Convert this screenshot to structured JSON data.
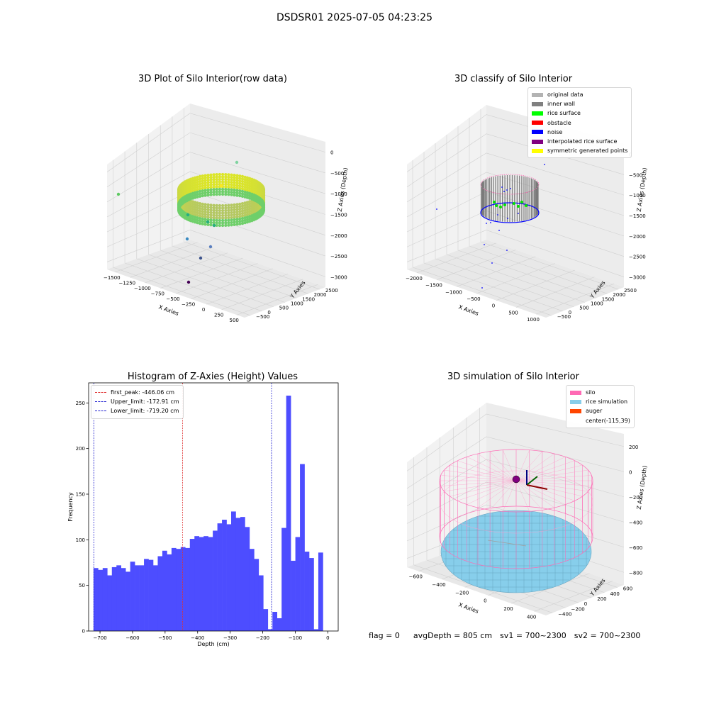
{
  "figure": {
    "suptitle": "DSDSR01 2025-07-05 04:23:25",
    "status": {
      "flag": "flag = 0",
      "avg_depth": "avgDepth = 805 cm",
      "sv1": "sv1 = 700~2300",
      "sv2": "sv2 = 700~2300"
    }
  },
  "chart_data": [
    {
      "type": "scatter3d",
      "title": "3D Plot of Silo Interior(row data)",
      "xlabel": "X Axies",
      "ylabel": "Y Axies",
      "zlabel": "Z Axies (Depth)",
      "x_ticks": [
        "−1500",
        "−1250",
        "−1000",
        "−750",
        "−500",
        "−250",
        "0",
        "250",
        "500"
      ],
      "y_ticks": [
        "−500",
        "0",
        "500",
        "1000",
        "1500",
        "2000",
        "2500"
      ],
      "z_ticks": [
        "0",
        "−500",
        "−1000",
        "−1500",
        "−2000",
        "−2500",
        "−3000"
      ],
      "colormap": "viridis",
      "grid": true
    },
    {
      "type": "scatter3d",
      "title": "3D classify of Silo Interior",
      "xlabel": "X Axies",
      "ylabel": "Y Axies",
      "zlabel": "Z Axies (Depth)",
      "x_ticks": [
        "−2000",
        "−1500",
        "−1000",
        "−500",
        "0",
        "500",
        "1000"
      ],
      "y_ticks": [
        "−500",
        "0",
        "500",
        "1000",
        "1500",
        "2000",
        "2500"
      ],
      "z_ticks": [
        "0",
        "−500",
        "−1000",
        "−1500",
        "−2000",
        "−2500",
        "−3000"
      ],
      "legend": [
        {
          "label": "original data",
          "color": "#b3b3b3"
        },
        {
          "label": "inner wall",
          "color": "#808080"
        },
        {
          "label": "rice surface",
          "color": "#00ff00"
        },
        {
          "label": "obstacle",
          "color": "#ff0000"
        },
        {
          "label": "noise",
          "color": "#0000ff"
        },
        {
          "label": "interpolated rice surface",
          "color": "#800080"
        },
        {
          "label": "symmetric generated points",
          "color": "#ffff00"
        }
      ],
      "legend_position": "top-right",
      "grid": true
    },
    {
      "type": "bar",
      "title": "Histogram of Z-Axies (Height) Values",
      "xlabel": "Depth (cm)",
      "ylabel": "Frequency",
      "xlim": [
        -735,
        32
      ],
      "ylim": [
        0,
        272
      ],
      "x_ticks": [
        -700,
        -600,
        -500,
        -400,
        -300,
        -200,
        -100,
        0
      ],
      "x_tick_labels": [
        "−700",
        "−600",
        "−500",
        "−400",
        "−300",
        "−200",
        "−100",
        "0"
      ],
      "y_ticks": [
        0,
        50,
        100,
        150,
        200,
        250
      ],
      "bin_start": -720,
      "bin_width": 14.1,
      "values": [
        69,
        67,
        69,
        61,
        70,
        72,
        69,
        65,
        76,
        72,
        72,
        79,
        78,
        72,
        82,
        88,
        84,
        91,
        90,
        92,
        91,
        101,
        104,
        103,
        104,
        103,
        110,
        118,
        122,
        117,
        131,
        124,
        125,
        114,
        90,
        79,
        61,
        24,
        2,
        21,
        14,
        113,
        258,
        77,
        103,
        183,
        87,
        80,
        2,
        86
      ],
      "bar_color": "#4d4dff",
      "vlines": [
        {
          "label": "first_peak: -446.06 cm",
          "x": -446.06,
          "color": "#e03030"
        },
        {
          "label": "Upper_limit: -172.91 cm",
          "x": -172.91,
          "color": "#2020d0"
        },
        {
          "label": "Lower_limit: -719.20 cm",
          "x": -719.2,
          "color": "#2020d0"
        }
      ],
      "legend_position": "top-left",
      "grid": false
    },
    {
      "type": "surface3d",
      "title": "3D simulation of Silo Interior",
      "xlabel": "X Axies",
      "ylabel": "Y Axies",
      "zlabel": "Z Axies (Depth)",
      "x_ticks": [
        "−600",
        "−400",
        "−200",
        "0",
        "200",
        "400"
      ],
      "y_ticks": [
        "−400",
        "−200",
        "0",
        "200",
        "400",
        "600"
      ],
      "z_ticks": [
        "200",
        "0",
        "−200",
        "−400",
        "−600",
        "−800"
      ],
      "legend": [
        {
          "label": "silo",
          "color": "#ff69b4"
        },
        {
          "label": "rice simulation",
          "color": "#87ceeb"
        },
        {
          "label": "auger",
          "color": "#ff4500"
        },
        {
          "label": "center(-115,39)",
          "color": ""
        }
      ],
      "legend_position": "top-right",
      "grid": true
    }
  ]
}
